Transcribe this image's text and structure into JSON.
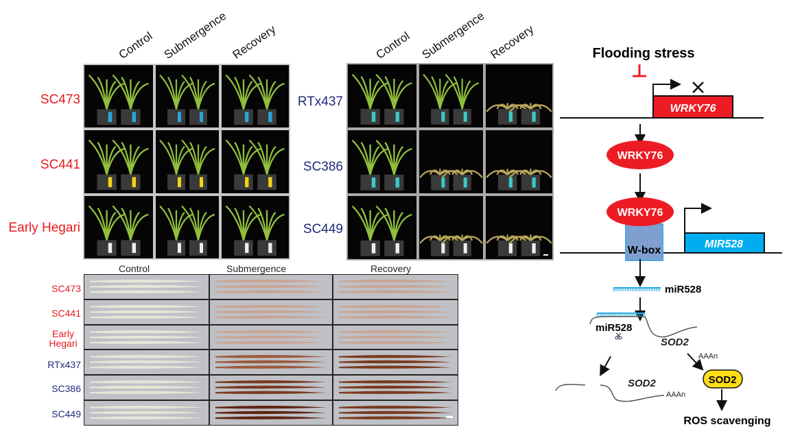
{
  "panel_a": {
    "columns": [
      "Control",
      "Submergence",
      "Recovery"
    ],
    "rows": [
      "SC473",
      "SC441",
      "Early Hegari"
    ],
    "row_color": "#e8191f"
  },
  "panel_b": {
    "columns": [
      "Control",
      "Submergence",
      "Recovery"
    ],
    "rows": [
      "RTx437",
      "SC386",
      "SC449"
    ],
    "row_color": "#1f2a7a"
  },
  "panel_c": {
    "columns": [
      "Control",
      "Submergence",
      "Recovery"
    ],
    "rows": [
      {
        "label": "SC473",
        "color": "#e8191f"
      },
      {
        "label": "SC441",
        "color": "#e8191f"
      },
      {
        "label": "Early Hegari",
        "color": "#e8191f"
      },
      {
        "label": "RTx437",
        "color": "#1f2a7a"
      },
      {
        "label": "SC386",
        "color": "#1f2a7a"
      },
      {
        "label": "SC449",
        "color": "#1f2a7a"
      }
    ]
  },
  "diagram": {
    "stress": "Flooding stress",
    "gene": "WRKY76",
    "protein1": "WRKY76",
    "protein2": "WRKY76",
    "wbox": "W-box",
    "mir_gene": "MIR528",
    "mirna1": "miR528",
    "mirna2": "miR528",
    "target1": "SOD2",
    "polya1": "AAAn",
    "target2": "SOD2",
    "polya2": "AAAn",
    "sod_protein": "SOD2",
    "outcome": "ROS scavenging",
    "colors": {
      "red": "#ed1c24",
      "blue": "#00aeef",
      "wbox": "#7f9fd0",
      "yellow": "#ffde17"
    }
  }
}
